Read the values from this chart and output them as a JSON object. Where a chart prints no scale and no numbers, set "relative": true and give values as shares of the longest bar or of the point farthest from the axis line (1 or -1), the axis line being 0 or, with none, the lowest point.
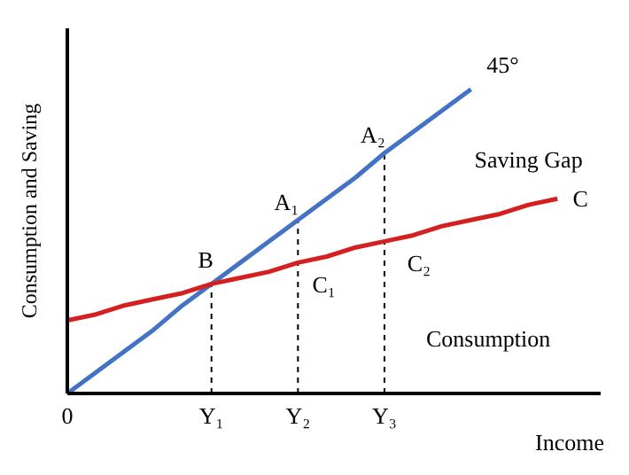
{
  "chart_data": {
    "type": "line",
    "relative": true,
    "xlabel": "Income",
    "ylabel": "Consumption and Saving",
    "categories": [
      "0",
      null,
      null,
      null,
      null,
      "Y₁",
      null,
      null,
      "Y₂",
      null,
      null,
      "Y₃",
      null,
      null,
      null,
      null,
      null,
      null
    ],
    "series": [
      {
        "color": "#4472c4",
        "values": [
          0,
          0.07,
          0.14,
          0.21,
          0.29,
          0.36,
          0.43,
          0.5,
          0.57,
          0.64,
          0.71,
          0.79,
          0.86,
          0.93,
          1,
          null,
          null,
          null
        ]
      },
      {
        "color": "#d42020",
        "values": [
          0.24,
          0.26,
          0.29,
          0.31,
          0.33,
          0.36,
          0.38,
          0.4,
          0.43,
          0.45,
          0.48,
          0.5,
          0.52,
          0.55,
          0.57,
          0.59,
          0.62,
          0.64
        ]
      }
    ],
    "marker": "none",
    "line_style": "solid",
    "ref_lines": [
      {
        "axis": "x",
        "value": "Y₁",
        "color": "#000000",
        "line_style": "dashed"
      },
      {
        "axis": "x",
        "value": "Y₂",
        "color": "#000000",
        "line_style": "dashed"
      },
      {
        "axis": "x",
        "value": "Y₃",
        "color": "#000000",
        "line_style": "dashed"
      }
    ],
    "annotations": [
      "45°",
      "A₂",
      "A₁",
      "B",
      "C₁",
      "C₂",
      "C",
      "Saving Gap",
      "Consumption"
    ]
  }
}
